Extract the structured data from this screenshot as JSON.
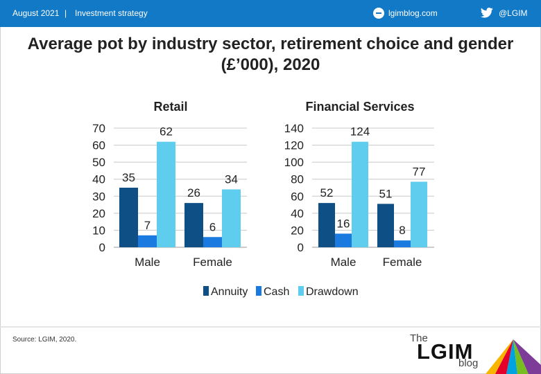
{
  "header": {
    "date": "August 2021",
    "separator": "|",
    "category": "Investment strategy",
    "blog_link": "lgimblog.com",
    "twitter": "@LGIM",
    "bar_color": "#1279c6"
  },
  "title_line1": "Average pot by industry sector, retirement choice and gender",
  "title_line2": "(£’000), 2020",
  "source": "Source: LGIM, 2020.",
  "logo": {
    "the": "The",
    "name": "LGIM",
    "blog": "blog"
  },
  "chart_data": [
    {
      "type": "bar",
      "title": "Retail",
      "categories": [
        "Male",
        "Female"
      ],
      "series": [
        {
          "name": "Annuity",
          "values": [
            35,
            26
          ],
          "color": "#0e4f86"
        },
        {
          "name": "Cash",
          "values": [
            7,
            6
          ],
          "color": "#1a7ae0"
        },
        {
          "name": "Drawdown",
          "values": [
            62,
            34
          ],
          "color": "#5fcdee"
        }
      ],
      "ylim": [
        0,
        70
      ],
      "yticks": [
        0,
        10,
        20,
        30,
        40,
        50,
        60,
        70
      ],
      "grid": true,
      "data_labels": true
    },
    {
      "type": "bar",
      "title": "Financial Services",
      "categories": [
        "Male",
        "Female"
      ],
      "series": [
        {
          "name": "Annuity",
          "values": [
            52,
            51
          ],
          "color": "#0e4f86"
        },
        {
          "name": "Cash",
          "values": [
            16,
            8
          ],
          "color": "#1a7ae0"
        },
        {
          "name": "Drawdown",
          "values": [
            124,
            77
          ],
          "color": "#5fcdee"
        }
      ],
      "ylim": [
        0,
        140
      ],
      "yticks": [
        0,
        20,
        40,
        60,
        80,
        100,
        120,
        140
      ],
      "grid": true,
      "data_labels": true
    }
  ],
  "legend": {
    "placement": "bottom",
    "items": [
      {
        "name": "Annuity",
        "color": "#0e4f86"
      },
      {
        "name": "Cash",
        "color": "#1a7ae0"
      },
      {
        "name": "Drawdown",
        "color": "#5fcdee"
      }
    ]
  }
}
